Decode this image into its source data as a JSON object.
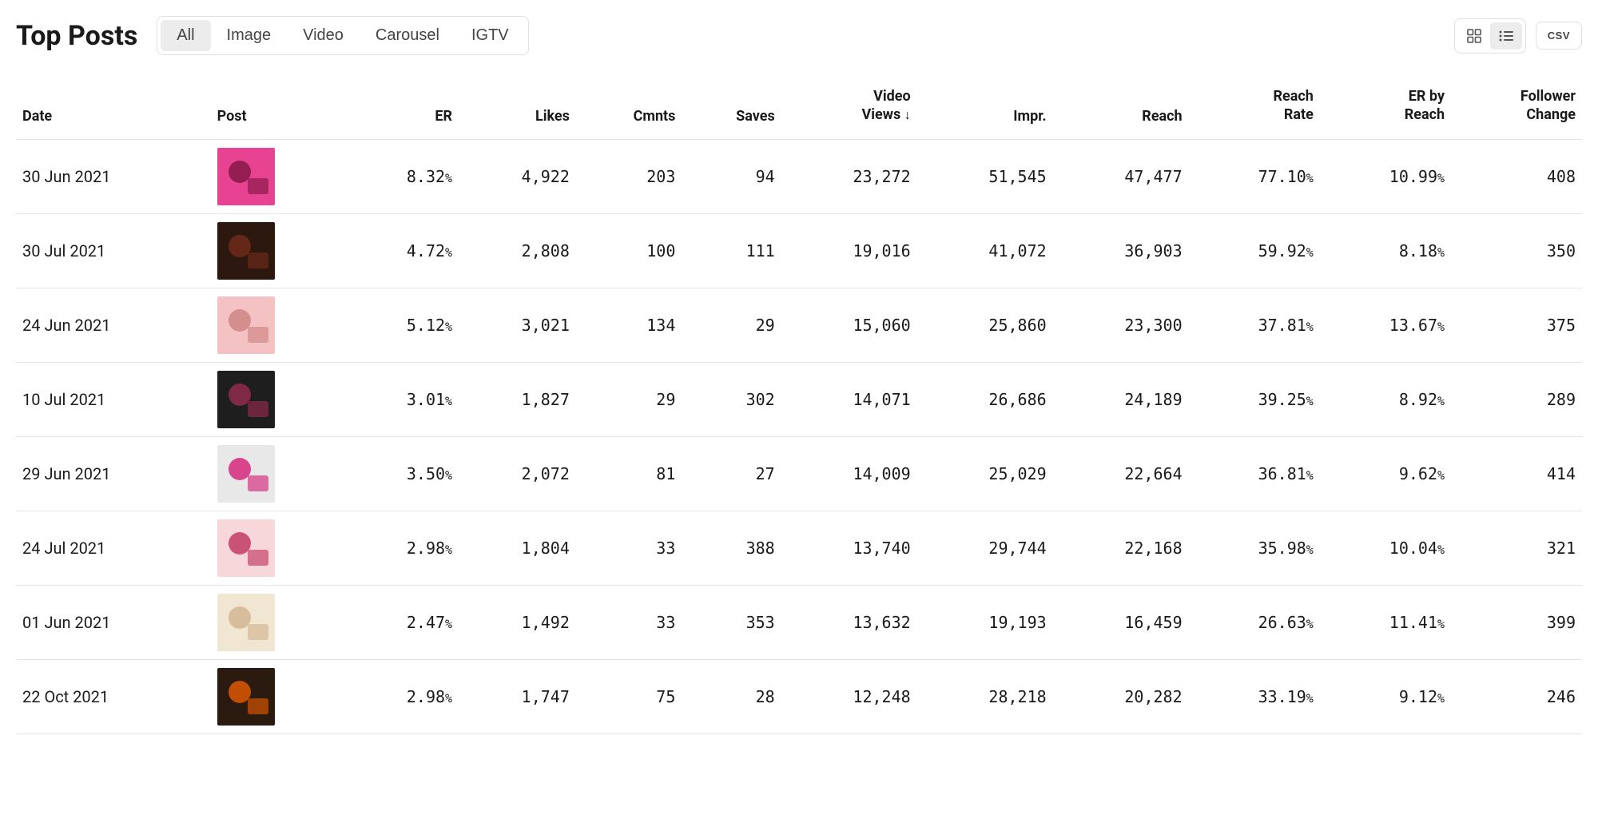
{
  "page_title": "Top Posts",
  "tabs": [
    {
      "label": "All",
      "active": true
    },
    {
      "label": "Image",
      "active": false
    },
    {
      "label": "Video",
      "active": false
    },
    {
      "label": "Carousel",
      "active": false
    },
    {
      "label": "IGTV",
      "active": false
    }
  ],
  "view_modes": {
    "grid_active": false,
    "list_active": true
  },
  "csv_label": "CSV",
  "sort_indicator": "↓",
  "columns": [
    {
      "key": "date",
      "label": "Date"
    },
    {
      "key": "post",
      "label": "Post"
    },
    {
      "key": "er",
      "label": "ER"
    },
    {
      "key": "likes",
      "label": "Likes"
    },
    {
      "key": "cmnts",
      "label": "Cmnts"
    },
    {
      "key": "saves",
      "label": "Saves"
    },
    {
      "key": "video_views",
      "label_line1": "Video",
      "label_line2": "Views",
      "sorted": true
    },
    {
      "key": "impr",
      "label": "Impr."
    },
    {
      "key": "reach",
      "label": "Reach"
    },
    {
      "key": "reach_rate",
      "label_line1": "Reach",
      "label_line2": "Rate"
    },
    {
      "key": "er_by_reach",
      "label_line1": "ER by",
      "label_line2": "Reach"
    },
    {
      "key": "follower_change",
      "label_line1": "Follower",
      "label_line2": "Change"
    }
  ],
  "thumb_colors": {
    "row1_bg": "#e84393",
    "row1_fg": "#8b1a4a",
    "row2_bg": "#2d1810",
    "row2_fg": "#6b2a1a",
    "row3_bg": "#f4c2c2",
    "row3_fg": "#d18888",
    "row4_bg": "#1e1e1e",
    "row4_fg": "#8b2a4a",
    "row5_bg": "#e8e8e8",
    "row5_fg": "#d63384",
    "row6_bg": "#f8d7da",
    "row6_fg": "#c44569",
    "row7_bg": "#f0e6d2",
    "row7_fg": "#d4b896",
    "row8_bg": "#2a1a0f",
    "row8_fg": "#d35400"
  },
  "rows": [
    {
      "date": "30 Jun 2021",
      "er": "8.32",
      "likes": "4,922",
      "cmnts": "203",
      "saves": "94",
      "video_views": "23,272",
      "impr": "51,545",
      "reach": "47,477",
      "reach_rate": "77.10",
      "er_by_reach": "10.99",
      "follower_change": "408"
    },
    {
      "date": "30 Jul 2021",
      "er": "4.72",
      "likes": "2,808",
      "cmnts": "100",
      "saves": "111",
      "video_views": "19,016",
      "impr": "41,072",
      "reach": "36,903",
      "reach_rate": "59.92",
      "er_by_reach": "8.18",
      "follower_change": "350"
    },
    {
      "date": "24 Jun 2021",
      "er": "5.12",
      "likes": "3,021",
      "cmnts": "134",
      "saves": "29",
      "video_views": "15,060",
      "impr": "25,860",
      "reach": "23,300",
      "reach_rate": "37.81",
      "er_by_reach": "13.67",
      "follower_change": "375"
    },
    {
      "date": "10 Jul 2021",
      "er": "3.01",
      "likes": "1,827",
      "cmnts": "29",
      "saves": "302",
      "video_views": "14,071",
      "impr": "26,686",
      "reach": "24,189",
      "reach_rate": "39.25",
      "er_by_reach": "8.92",
      "follower_change": "289"
    },
    {
      "date": "29 Jun 2021",
      "er": "3.50",
      "likes": "2,072",
      "cmnts": "81",
      "saves": "27",
      "video_views": "14,009",
      "impr": "25,029",
      "reach": "22,664",
      "reach_rate": "36.81",
      "er_by_reach": "9.62",
      "follower_change": "414"
    },
    {
      "date": "24 Jul 2021",
      "er": "2.98",
      "likes": "1,804",
      "cmnts": "33",
      "saves": "388",
      "video_views": "13,740",
      "impr": "29,744",
      "reach": "22,168",
      "reach_rate": "35.98",
      "er_by_reach": "10.04",
      "follower_change": "321"
    },
    {
      "date": "01 Jun 2021",
      "er": "2.47",
      "likes": "1,492",
      "cmnts": "33",
      "saves": "353",
      "video_views": "13,632",
      "impr": "19,193",
      "reach": "16,459",
      "reach_rate": "26.63",
      "er_by_reach": "11.41",
      "follower_change": "399"
    },
    {
      "date": "22 Oct 2021",
      "er": "2.98",
      "likes": "1,747",
      "cmnts": "75",
      "saves": "28",
      "video_views": "12,248",
      "impr": "28,218",
      "reach": "20,282",
      "reach_rate": "33.19",
      "er_by_reach": "9.12",
      "follower_change": "246"
    }
  ]
}
